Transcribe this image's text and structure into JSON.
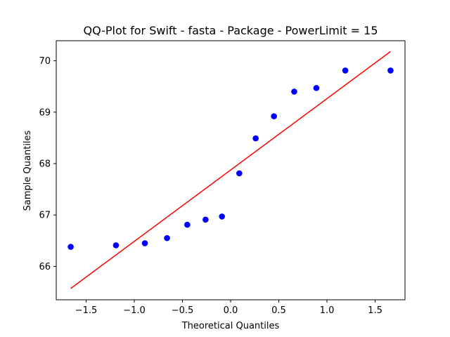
{
  "chart_data": {
    "type": "scatter",
    "title": "QQ-Plot for Swift - fasta - Package - PowerLimit = 15",
    "xlabel": "Theoretical Quantiles",
    "ylabel": "Sample Quantiles",
    "xlim": [
      -1.81,
      1.81
    ],
    "ylim": [
      65.35,
      70.39
    ],
    "xticks": [
      -1.5,
      -1.0,
      -0.5,
      0.0,
      0.5,
      1.0,
      1.5
    ],
    "xtick_labels": [
      "−1.5",
      "−1.0",
      "−0.5",
      "0.0",
      "0.5",
      "1.0",
      "1.5"
    ],
    "yticks": [
      66,
      67,
      68,
      69,
      70
    ],
    "ytick_labels": [
      "66",
      "67",
      "68",
      "69",
      "70"
    ],
    "grid": false,
    "legend": "none",
    "series": [
      {
        "kind": "points",
        "color": "#0000ff",
        "x": [
          -1.66,
          -1.19,
          -0.89,
          -0.66,
          -0.45,
          -0.26,
          -0.09,
          0.09,
          0.26,
          0.45,
          0.66,
          0.89,
          1.19,
          1.66
        ],
        "y": [
          66.38,
          66.41,
          66.45,
          66.55,
          66.81,
          66.91,
          66.97,
          67.81,
          68.49,
          68.92,
          69.4,
          69.47,
          69.81,
          69.81
        ]
      },
      {
        "kind": "line",
        "color": "#ff0000",
        "x": [
          -1.66,
          1.66
        ],
        "y": [
          65.57,
          70.18
        ]
      }
    ]
  }
}
